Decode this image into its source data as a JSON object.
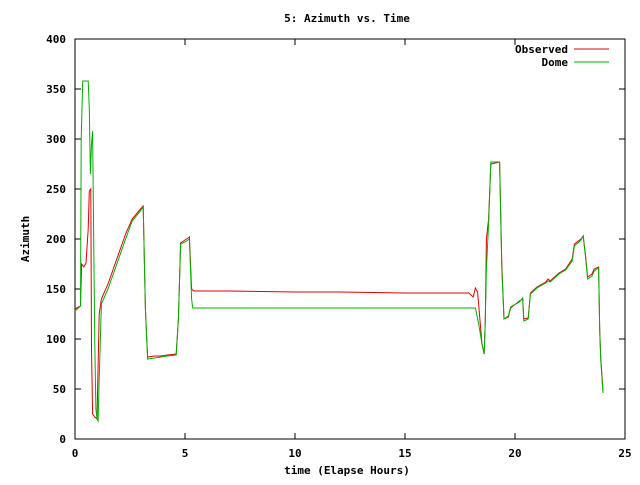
{
  "chart_data": {
    "type": "line",
    "title": "5: Azimuth vs. Time",
    "xlabel": "time (Elapse Hours)",
    "ylabel": "Azimuth",
    "xlim": [
      0,
      25
    ],
    "ylim": [
      0,
      400
    ],
    "x_ticks": [
      "0",
      "5",
      "10",
      "15",
      "20",
      "25"
    ],
    "y_ticks": [
      "0",
      "50",
      "100",
      "150",
      "200",
      "250",
      "300",
      "350",
      "400"
    ],
    "grid": false,
    "legend_position": "top-right",
    "series": [
      {
        "name": "Observed",
        "color": "#e00000",
        "points": [
          [
            0.0,
            130
          ],
          [
            0.25,
            133
          ],
          [
            0.3,
            175
          ],
          [
            0.4,
            172
          ],
          [
            0.5,
            176
          ],
          [
            0.6,
            210
          ],
          [
            0.65,
            248
          ],
          [
            0.72,
            250
          ],
          [
            0.75,
            90
          ],
          [
            0.8,
            25
          ],
          [
            0.9,
            22
          ],
          [
            1.0,
            20
          ],
          [
            1.1,
            125
          ],
          [
            1.2,
            140
          ],
          [
            1.5,
            155
          ],
          [
            1.9,
            180
          ],
          [
            2.3,
            205
          ],
          [
            2.6,
            220
          ],
          [
            2.9,
            228
          ],
          [
            3.1,
            233
          ],
          [
            3.2,
            130
          ],
          [
            3.3,
            82
          ],
          [
            3.6,
            83
          ],
          [
            3.9,
            83
          ],
          [
            4.2,
            84
          ],
          [
            4.6,
            85
          ],
          [
            4.7,
            120
          ],
          [
            4.8,
            196
          ],
          [
            5.0,
            199
          ],
          [
            5.2,
            202
          ],
          [
            5.3,
            150
          ],
          [
            5.4,
            148
          ],
          [
            7.0,
            148
          ],
          [
            10.0,
            147
          ],
          [
            12.0,
            147
          ],
          [
            15.0,
            146
          ],
          [
            17.9,
            146
          ],
          [
            18.1,
            142
          ],
          [
            18.2,
            151
          ],
          [
            18.3,
            147
          ],
          [
            18.5,
            95
          ],
          [
            18.6,
            85
          ],
          [
            18.65,
            120
          ],
          [
            18.7,
            200
          ],
          [
            18.8,
            220
          ],
          [
            18.9,
            275
          ],
          [
            19.3,
            277
          ],
          [
            19.4,
            175
          ],
          [
            19.5,
            120
          ],
          [
            19.7,
            122
          ],
          [
            19.8,
            131
          ],
          [
            20.2,
            138
          ],
          [
            20.35,
            140
          ],
          [
            20.4,
            120
          ],
          [
            20.6,
            121
          ],
          [
            20.7,
            146
          ],
          [
            21.0,
            152
          ],
          [
            21.4,
            157
          ],
          [
            21.5,
            160
          ],
          [
            21.6,
            158
          ],
          [
            21.8,
            162
          ],
          [
            22.0,
            166
          ],
          [
            22.3,
            170
          ],
          [
            22.6,
            180
          ],
          [
            22.7,
            195
          ],
          [
            23.0,
            200
          ],
          [
            23.1,
            203
          ],
          [
            23.2,
            185
          ],
          [
            23.3,
            162
          ],
          [
            23.5,
            165
          ],
          [
            23.6,
            170
          ],
          [
            23.8,
            172
          ],
          [
            23.85,
            110
          ],
          [
            23.9,
            80
          ],
          [
            24.0,
            48
          ]
        ]
      },
      {
        "name": "Dome",
        "color": "#00b000",
        "points": [
          [
            0.0,
            128
          ],
          [
            0.25,
            133
          ],
          [
            0.28,
            300
          ],
          [
            0.35,
            358
          ],
          [
            0.6,
            358
          ],
          [
            0.65,
            330
          ],
          [
            0.7,
            265
          ],
          [
            0.75,
            295
          ],
          [
            0.8,
            308
          ],
          [
            0.85,
            200
          ],
          [
            0.9,
            95
          ],
          [
            0.95,
            30
          ],
          [
            1.0,
            20
          ],
          [
            1.05,
            18
          ],
          [
            1.1,
            60
          ],
          [
            1.2,
            135
          ],
          [
            1.5,
            150
          ],
          [
            1.9,
            175
          ],
          [
            2.3,
            200
          ],
          [
            2.6,
            218
          ],
          [
            2.9,
            226
          ],
          [
            3.1,
            232
          ],
          [
            3.2,
            130
          ],
          [
            3.3,
            80
          ],
          [
            3.6,
            81
          ],
          [
            3.9,
            82
          ],
          [
            4.2,
            83
          ],
          [
            4.6,
            84
          ],
          [
            4.7,
            120
          ],
          [
            4.8,
            195
          ],
          [
            5.0,
            197
          ],
          [
            5.2,
            200
          ],
          [
            5.3,
            140
          ],
          [
            5.35,
            131
          ],
          [
            7.0,
            131
          ],
          [
            10.0,
            131
          ],
          [
            15.0,
            131
          ],
          [
            17.9,
            131
          ],
          [
            18.2,
            131
          ],
          [
            18.35,
            115
          ],
          [
            18.5,
            95
          ],
          [
            18.6,
            85
          ],
          [
            18.65,
            120
          ],
          [
            18.7,
            170
          ],
          [
            18.8,
            215
          ],
          [
            18.9,
            277
          ],
          [
            19.3,
            277
          ],
          [
            19.4,
            170
          ],
          [
            19.5,
            120
          ],
          [
            19.7,
            123
          ],
          [
            19.8,
            132
          ],
          [
            20.2,
            137
          ],
          [
            20.35,
            141
          ],
          [
            20.4,
            118
          ],
          [
            20.6,
            120
          ],
          [
            20.7,
            145
          ],
          [
            21.0,
            151
          ],
          [
            21.4,
            156
          ],
          [
            21.5,
            158
          ],
          [
            21.6,
            157
          ],
          [
            21.8,
            161
          ],
          [
            22.0,
            165
          ],
          [
            22.3,
            169
          ],
          [
            22.6,
            178
          ],
          [
            22.7,
            193
          ],
          [
            23.0,
            199
          ],
          [
            23.1,
            203
          ],
          [
            23.2,
            183
          ],
          [
            23.3,
            160
          ],
          [
            23.5,
            163
          ],
          [
            23.6,
            168
          ],
          [
            23.8,
            171
          ],
          [
            23.85,
            108
          ],
          [
            23.9,
            78
          ],
          [
            24.0,
            46
          ]
        ]
      }
    ]
  }
}
